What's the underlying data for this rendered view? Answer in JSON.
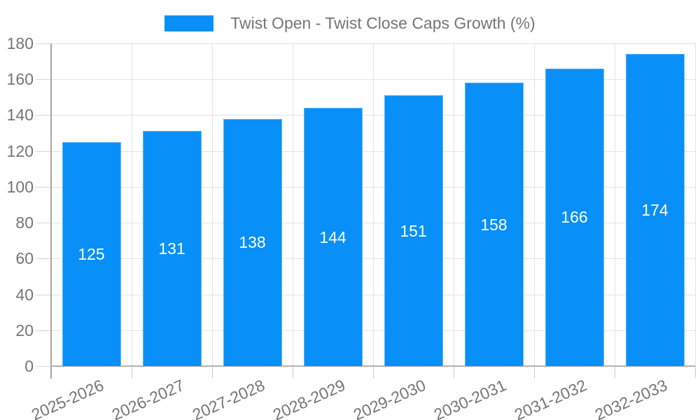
{
  "chart_data": {
    "type": "bar",
    "series": [
      {
        "name": "Twist Open - Twist Close Caps Growth (%)",
        "values": [
          125,
          131,
          138,
          144,
          151,
          158,
          166,
          174
        ]
      }
    ],
    "categories": [
      "2025-2026",
      "2026-2027",
      "2027-2028",
      "2028-2029",
      "2029-2030",
      "2030-2031",
      "2031-2032",
      "2032-2033"
    ],
    "ylim": [
      0,
      180
    ],
    "ytick_step": 20,
    "ytick_labels": [
      "0",
      "20",
      "40",
      "60",
      "80",
      "100",
      "120",
      "140",
      "160",
      "180"
    ],
    "grid": true,
    "legend_position": "top-center",
    "value_labels": "inside-center",
    "colors": {
      "bar": "#0890F8",
      "value_label": "#FFFFFF",
      "axis_text": "#757575",
      "gridline": "#E3E3E3",
      "axis_line": "#A6A6A6",
      "baseline": "#B3B3B3",
      "ytick": "#D6D6D6",
      "category_tick": "#C9C9C9"
    }
  }
}
